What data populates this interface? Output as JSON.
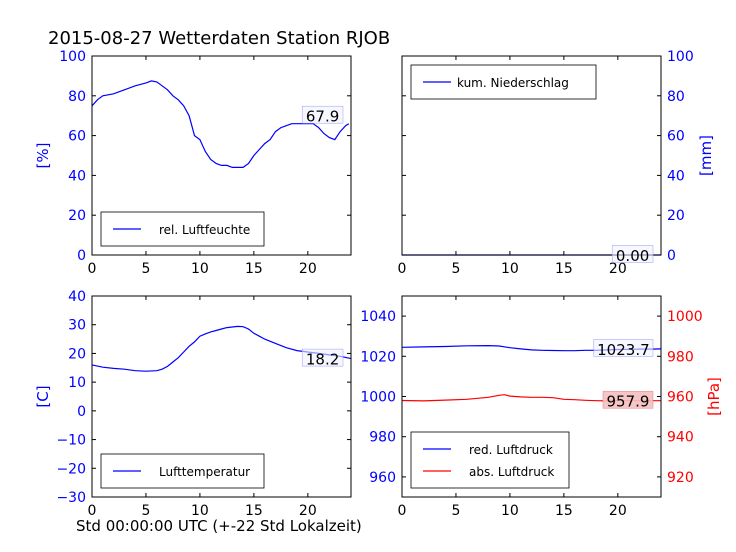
{
  "title": "2015-08-27 Wetterdaten Station RJOB",
  "xlabel": "Std 00:00:00 UTC (+-22 Std Lokalzeit)",
  "colors": {
    "blue": "#0000ff",
    "red": "#ff0000",
    "axis": "#000000",
    "text": "#000000"
  },
  "chart_data": [
    {
      "type": "line",
      "ylabel": "[%]",
      "xlim": [
        0,
        24
      ],
      "ylim": [
        0,
        100
      ],
      "xticks": [
        "0",
        "5",
        "10",
        "15",
        "20"
      ],
      "yticks": [
        "0",
        "20",
        "40",
        "60",
        "80",
        "100"
      ],
      "legend": {
        "entries": [
          "rel. Luftfeuchte"
        ],
        "position": "lower-left"
      },
      "annotation": "67.9",
      "series": [
        {
          "name": "rel. Luftfeuchte",
          "color": "#0000ff",
          "x": [
            0,
            0.5,
            1,
            2,
            3,
            4,
            5,
            5.5,
            6,
            6.5,
            7,
            7.5,
            8,
            8.5,
            9,
            9.5,
            10,
            10.5,
            11,
            11.5,
            12,
            12.5,
            13,
            13.5,
            14,
            14.5,
            15,
            15.5,
            16,
            16.5,
            17,
            17.5,
            18,
            18.5,
            19,
            19.5,
            20,
            20.5,
            21,
            21.5,
            22,
            22.5,
            23,
            23.5,
            23.8
          ],
          "y": [
            75,
            78,
            80,
            81,
            83,
            85,
            86.5,
            87.5,
            87,
            85,
            83,
            80,
            78,
            75,
            70,
            60,
            58,
            52,
            48,
            46,
            45,
            45,
            44,
            44,
            44,
            46,
            50,
            53,
            56,
            58,
            62,
            64,
            65,
            66,
            66,
            66,
            66,
            66,
            64,
            61,
            59,
            58,
            62,
            65,
            66
          ]
        }
      ]
    },
    {
      "type": "line",
      "ylabel": "[mm]",
      "xlim": [
        0,
        24
      ],
      "ylim": [
        0,
        100
      ],
      "xticks": [
        "0",
        "5",
        "10",
        "15",
        "20"
      ],
      "yticks": [
        "0",
        "20",
        "40",
        "60",
        "80",
        "100"
      ],
      "legend": {
        "entries": [
          "kum. Niederschlag"
        ],
        "position": "top-left"
      },
      "annotation": "0.00",
      "series": [
        {
          "name": "kum. Niederschlag",
          "color": "#0000ff",
          "x": [
            0,
            24
          ],
          "y": [
            0,
            0
          ]
        }
      ]
    },
    {
      "type": "line",
      "ylabel": "[C]",
      "xlim": [
        0,
        24
      ],
      "ylim": [
        -30,
        40
      ],
      "xticks": [
        "0",
        "5",
        "10",
        "15",
        "20"
      ],
      "yticks": [
        "−30",
        "−20",
        "−10",
        "0",
        "10",
        "20",
        "30",
        "40"
      ],
      "legend": {
        "entries": [
          "Lufttemperatur"
        ],
        "position": "lower-left"
      },
      "annotation": "18.2",
      "series": [
        {
          "name": "Lufttemperatur",
          "color": "#0000ff",
          "x": [
            0,
            1,
            2,
            3,
            4,
            5,
            6,
            6.5,
            7,
            7.5,
            8,
            8.5,
            9,
            9.5,
            10,
            10.5,
            11,
            11.5,
            12,
            12.5,
            13,
            13.5,
            14,
            14.5,
            15,
            15.5,
            16,
            17,
            18,
            19,
            20,
            21,
            22,
            23,
            24
          ],
          "y": [
            16,
            15.2,
            14.8,
            14.5,
            14,
            13.8,
            14,
            14.5,
            15.5,
            17,
            18.5,
            20.5,
            22.5,
            24,
            26,
            26.8,
            27.5,
            28,
            28.5,
            29,
            29.2,
            29.4,
            29.3,
            28.5,
            27,
            26,
            25,
            23.5,
            22,
            21,
            20.5,
            20,
            19.5,
            19,
            18.2
          ]
        }
      ]
    },
    {
      "type": "line",
      "ylabel_right": "[hPa]",
      "xlim": [
        0,
        24
      ],
      "ylim": [
        950,
        1050
      ],
      "ylim_right": [
        910,
        1010
      ],
      "xticks": [
        "0",
        "5",
        "10",
        "15",
        "20"
      ],
      "yticks": [
        "960",
        "980",
        "1000",
        "1020",
        "1040"
      ],
      "yticks_right": [
        "920",
        "940",
        "960",
        "980",
        "1000"
      ],
      "legend": {
        "entries": [
          "red. Luftdruck",
          "abs. Luftdruck"
        ],
        "position": "lower-left"
      },
      "annotations": [
        "1023.7",
        "957.9"
      ],
      "series": [
        {
          "name": "red. Luftdruck",
          "color": "#0000ff",
          "axis": "left",
          "x": [
            0,
            2,
            4,
            6,
            8,
            9,
            10,
            11,
            12,
            13,
            14,
            15,
            16,
            17,
            18,
            19,
            20,
            21,
            22,
            23,
            24
          ],
          "y": [
            1024.5,
            1024.7,
            1024.9,
            1025.2,
            1025.3,
            1025.1,
            1024.3,
            1023.7,
            1023.2,
            1023.0,
            1022.9,
            1022.8,
            1022.8,
            1023.0,
            1023.0,
            1023.2,
            1023.4,
            1023.5,
            1023.6,
            1023.6,
            1023.7
          ]
        },
        {
          "name": "abs. Luftdruck",
          "color": "#ff0000",
          "axis": "right",
          "x": [
            0,
            2,
            4,
            6,
            8,
            9,
            9.5,
            10,
            11,
            12,
            13,
            14,
            15,
            16,
            17,
            18,
            19,
            20,
            21,
            22,
            23,
            24
          ],
          "y": [
            958,
            957.8,
            958.2,
            958.6,
            959.6,
            960.6,
            960.9,
            960.2,
            959.8,
            959.6,
            959.6,
            959.4,
            958.6,
            958.4,
            958.1,
            957.9,
            957.8,
            957.9,
            958.0,
            957.9,
            957.9,
            957.9
          ]
        }
      ]
    }
  ]
}
